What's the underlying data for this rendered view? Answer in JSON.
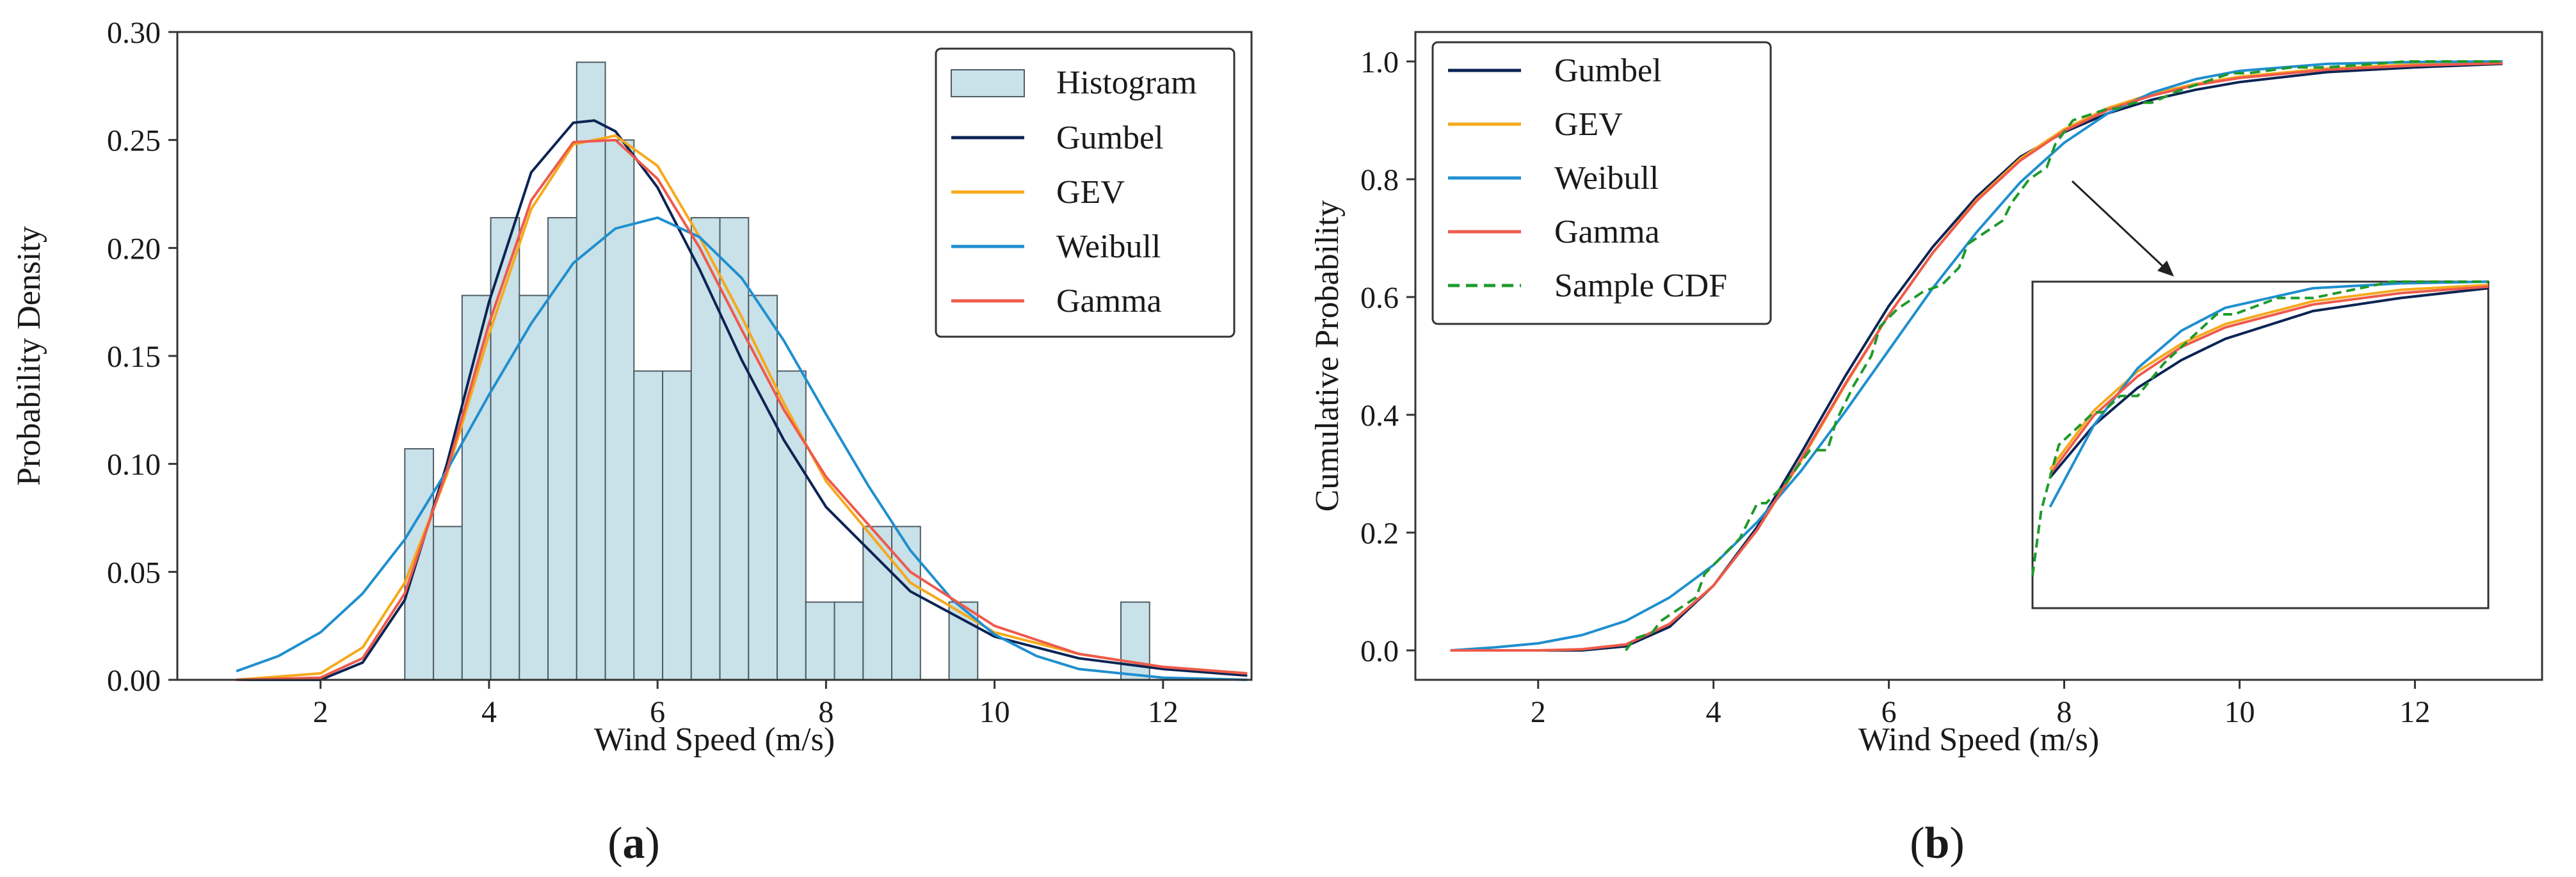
{
  "colors": {
    "gumbel": "#0b2454",
    "gev": "#f5a91b",
    "weibull": "#1f8fcf",
    "gamma": "#ee5a4c",
    "sample": "#1e9a2a",
    "hist_fill": "#c9e1e8",
    "hist_edge": "#4f5c63"
  },
  "chart_data": [
    {
      "type": "bar",
      "panel_label": "a",
      "panel_label_paren": [
        "(",
        ")"
      ],
      "xlabel": "Wind Speed (m/s)",
      "ylabel": "Probability Density",
      "xlim": [
        0.3,
        13.05
      ],
      "ylim": [
        0,
        0.3
      ],
      "xticks": [
        2,
        4,
        6,
        8,
        10,
        12
      ],
      "xtick_labels": [
        "2",
        "4",
        "6",
        "8",
        "10",
        "12"
      ],
      "yticks": [
        0,
        0.05,
        0.1,
        0.15,
        0.2,
        0.25,
        0.3
      ],
      "ytick_labels": [
        "0.00",
        "0.05",
        "0.10",
        "0.15",
        "0.20",
        "0.25",
        "0.30"
      ],
      "legend_position": "top-right",
      "histogram": {
        "name": "Histogram",
        "bin_width": 0.34,
        "bin_starts": [
          3.0,
          3.34,
          3.68,
          4.02,
          4.36,
          4.7,
          5.04,
          5.38,
          5.72,
          6.06,
          6.4,
          6.74,
          7.08,
          7.42,
          7.76,
          8.1,
          8.44,
          8.78,
          9.12,
          9.46,
          9.8,
          10.14,
          10.48,
          10.82,
          11.16,
          11.5,
          11.84
        ],
        "densities": [
          0.107,
          0.071,
          0.178,
          0.214,
          0.178,
          0.214,
          0.286,
          0.25,
          0.143,
          0.143,
          0.214,
          0.214,
          0.178,
          0.143,
          0.036,
          0.036,
          0.071,
          0.071,
          0.0,
          0.036,
          0.0,
          0.0,
          0.0,
          0.0,
          0.0,
          0.036,
          0.0
        ]
      },
      "series": [
        {
          "name": "Gumbel",
          "x": [
            1.0,
            2.0,
            2.5,
            3.0,
            3.5,
            4.0,
            4.5,
            5.0,
            5.25,
            5.5,
            6.0,
            6.5,
            7.0,
            7.5,
            8.0,
            9.0,
            10.0,
            11.0,
            12.0,
            13.0
          ],
          "y": [
            0.0,
            0.0,
            0.008,
            0.037,
            0.1,
            0.175,
            0.235,
            0.258,
            0.259,
            0.254,
            0.228,
            0.19,
            0.148,
            0.111,
            0.08,
            0.041,
            0.02,
            0.01,
            0.005,
            0.002
          ]
        },
        {
          "name": "GEV",
          "x": [
            1.0,
            2.0,
            2.5,
            3.0,
            3.5,
            4.0,
            4.5,
            5.0,
            5.5,
            6.0,
            6.5,
            7.0,
            7.5,
            8.0,
            9.0,
            10.0,
            11.0,
            12.0,
            13.0
          ],
          "y": [
            0.0,
            0.003,
            0.015,
            0.045,
            0.095,
            0.16,
            0.218,
            0.248,
            0.252,
            0.238,
            0.205,
            0.168,
            0.128,
            0.092,
            0.045,
            0.022,
            0.012,
            0.006,
            0.003
          ]
        },
        {
          "name": "Weibull",
          "x": [
            1.0,
            1.5,
            2.0,
            2.5,
            3.0,
            3.5,
            4.0,
            4.5,
            5.0,
            5.5,
            6.0,
            6.5,
            7.0,
            7.5,
            8.0,
            8.5,
            9.0,
            9.5,
            10.0,
            10.5,
            11.0,
            12.0,
            13.0
          ],
          "y": [
            0.004,
            0.011,
            0.022,
            0.04,
            0.065,
            0.097,
            0.132,
            0.165,
            0.193,
            0.209,
            0.214,
            0.205,
            0.186,
            0.157,
            0.123,
            0.09,
            0.06,
            0.037,
            0.021,
            0.011,
            0.005,
            0.001,
            0.0
          ]
        },
        {
          "name": "Gamma",
          "x": [
            1.0,
            2.0,
            2.5,
            3.0,
            3.5,
            4.0,
            4.5,
            5.0,
            5.5,
            6.0,
            6.5,
            7.0,
            7.5,
            8.0,
            9.0,
            10.0,
            11.0,
            12.0,
            13.0
          ],
          "y": [
            0.0,
            0.001,
            0.01,
            0.04,
            0.097,
            0.165,
            0.222,
            0.249,
            0.25,
            0.232,
            0.2,
            0.162,
            0.125,
            0.094,
            0.05,
            0.025,
            0.012,
            0.006,
            0.003
          ]
        }
      ]
    },
    {
      "type": "line",
      "panel_label": "b",
      "panel_label_paren": [
        "(",
        ")"
      ],
      "xlabel": "Wind Speed (m/s)",
      "ylabel": "Cumulative Probability",
      "xlim": [
        0.6,
        13.45
      ],
      "ylim": [
        -0.05,
        1.05
      ],
      "xticks": [
        2,
        4,
        6,
        8,
        10,
        12
      ],
      "xtick_labels": [
        "2",
        "4",
        "6",
        "8",
        "10",
        "12"
      ],
      "yticks": [
        0,
        0.2,
        0.4,
        0.6,
        0.8,
        1.0
      ],
      "ytick_labels": [
        "0.0",
        "0.2",
        "0.4",
        "0.6",
        "0.8",
        "1.0"
      ],
      "legend_position": "top-left",
      "inset": {
        "xlim": [
          7.8,
          13.0
        ],
        "ylim": [
          0.8,
          1.0
        ],
        "placement": "lower-right"
      },
      "series": [
        {
          "name": "Gumbel",
          "x": [
            1.0,
            2.0,
            2.5,
            3.0,
            3.5,
            4.0,
            4.5,
            5.0,
            5.5,
            6.0,
            6.5,
            7.0,
            7.5,
            8.0,
            8.5,
            9.0,
            9.5,
            10.0,
            11.0,
            12.0,
            13.0
          ],
          "y": [
            0.0,
            0.0,
            0.0,
            0.007,
            0.04,
            0.11,
            0.21,
            0.335,
            0.465,
            0.585,
            0.685,
            0.77,
            0.838,
            0.88,
            0.912,
            0.935,
            0.952,
            0.965,
            0.982,
            0.99,
            0.996
          ]
        },
        {
          "name": "GEV",
          "x": [
            1.0,
            2.0,
            2.5,
            3.0,
            3.5,
            4.0,
            4.5,
            5.0,
            5.5,
            6.0,
            6.5,
            7.0,
            7.5,
            8.0,
            8.5,
            9.0,
            9.5,
            10.0,
            11.0,
            12.0,
            13.0
          ],
          "y": [
            0.0,
            0.0,
            0.002,
            0.01,
            0.045,
            0.11,
            0.205,
            0.322,
            0.45,
            0.57,
            0.675,
            0.765,
            0.835,
            0.885,
            0.921,
            0.945,
            0.962,
            0.974,
            0.988,
            0.995,
            0.998
          ]
        },
        {
          "name": "Weibull",
          "x": [
            1.0,
            1.5,
            2.0,
            2.5,
            3.0,
            3.5,
            4.0,
            4.5,
            5.0,
            5.5,
            6.0,
            6.5,
            7.0,
            7.5,
            8.0,
            8.5,
            9.0,
            9.5,
            10.0,
            11.0,
            12.0,
            13.0
          ],
          "y": [
            0.0,
            0.005,
            0.012,
            0.026,
            0.05,
            0.09,
            0.145,
            0.218,
            0.305,
            0.405,
            0.51,
            0.615,
            0.71,
            0.795,
            0.862,
            0.912,
            0.947,
            0.97,
            0.984,
            0.996,
            0.999,
            1.0
          ]
        },
        {
          "name": "Gamma",
          "x": [
            1.0,
            2.0,
            2.5,
            3.0,
            3.5,
            4.0,
            4.5,
            5.0,
            5.5,
            6.0,
            6.5,
            7.0,
            7.5,
            8.0,
            8.5,
            9.0,
            9.5,
            10.0,
            11.0,
            12.0,
            13.0
          ],
          "y": [
            0.0,
            0.0,
            0.002,
            0.01,
            0.045,
            0.11,
            0.205,
            0.325,
            0.452,
            0.57,
            0.675,
            0.763,
            0.832,
            0.882,
            0.918,
            0.942,
            0.96,
            0.972,
            0.986,
            0.993,
            0.997
          ]
        },
        {
          "name": "Sample CDF",
          "dashed": true,
          "x": [
            3.0,
            3.1,
            3.3,
            3.4,
            3.6,
            3.8,
            3.9,
            4.1,
            4.3,
            4.5,
            4.6,
            4.8,
            5.0,
            5.1,
            5.3,
            5.4,
            5.6,
            5.8,
            5.9,
            6.1,
            6.3,
            6.4,
            6.6,
            6.8,
            6.9,
            7.1,
            7.3,
            7.4,
            7.6,
            7.8,
            7.9,
            8.1,
            8.3,
            8.5,
            8.6,
            8.8,
            9.0,
            9.3,
            9.5,
            9.9,
            10.1,
            10.6,
            11.0,
            11.9,
            12.5,
            13.0
          ],
          "y": [
            0.0,
            0.02,
            0.03,
            0.05,
            0.07,
            0.09,
            0.13,
            0.16,
            0.19,
            0.25,
            0.25,
            0.28,
            0.32,
            0.34,
            0.34,
            0.39,
            0.45,
            0.5,
            0.55,
            0.58,
            0.6,
            0.61,
            0.62,
            0.65,
            0.69,
            0.71,
            0.73,
            0.76,
            0.8,
            0.82,
            0.86,
            0.9,
            0.91,
            0.92,
            0.92,
            0.93,
            0.93,
            0.95,
            0.96,
            0.98,
            0.98,
            0.99,
            0.99,
            1.0,
            1.0,
            1.0
          ]
        }
      ]
    }
  ]
}
